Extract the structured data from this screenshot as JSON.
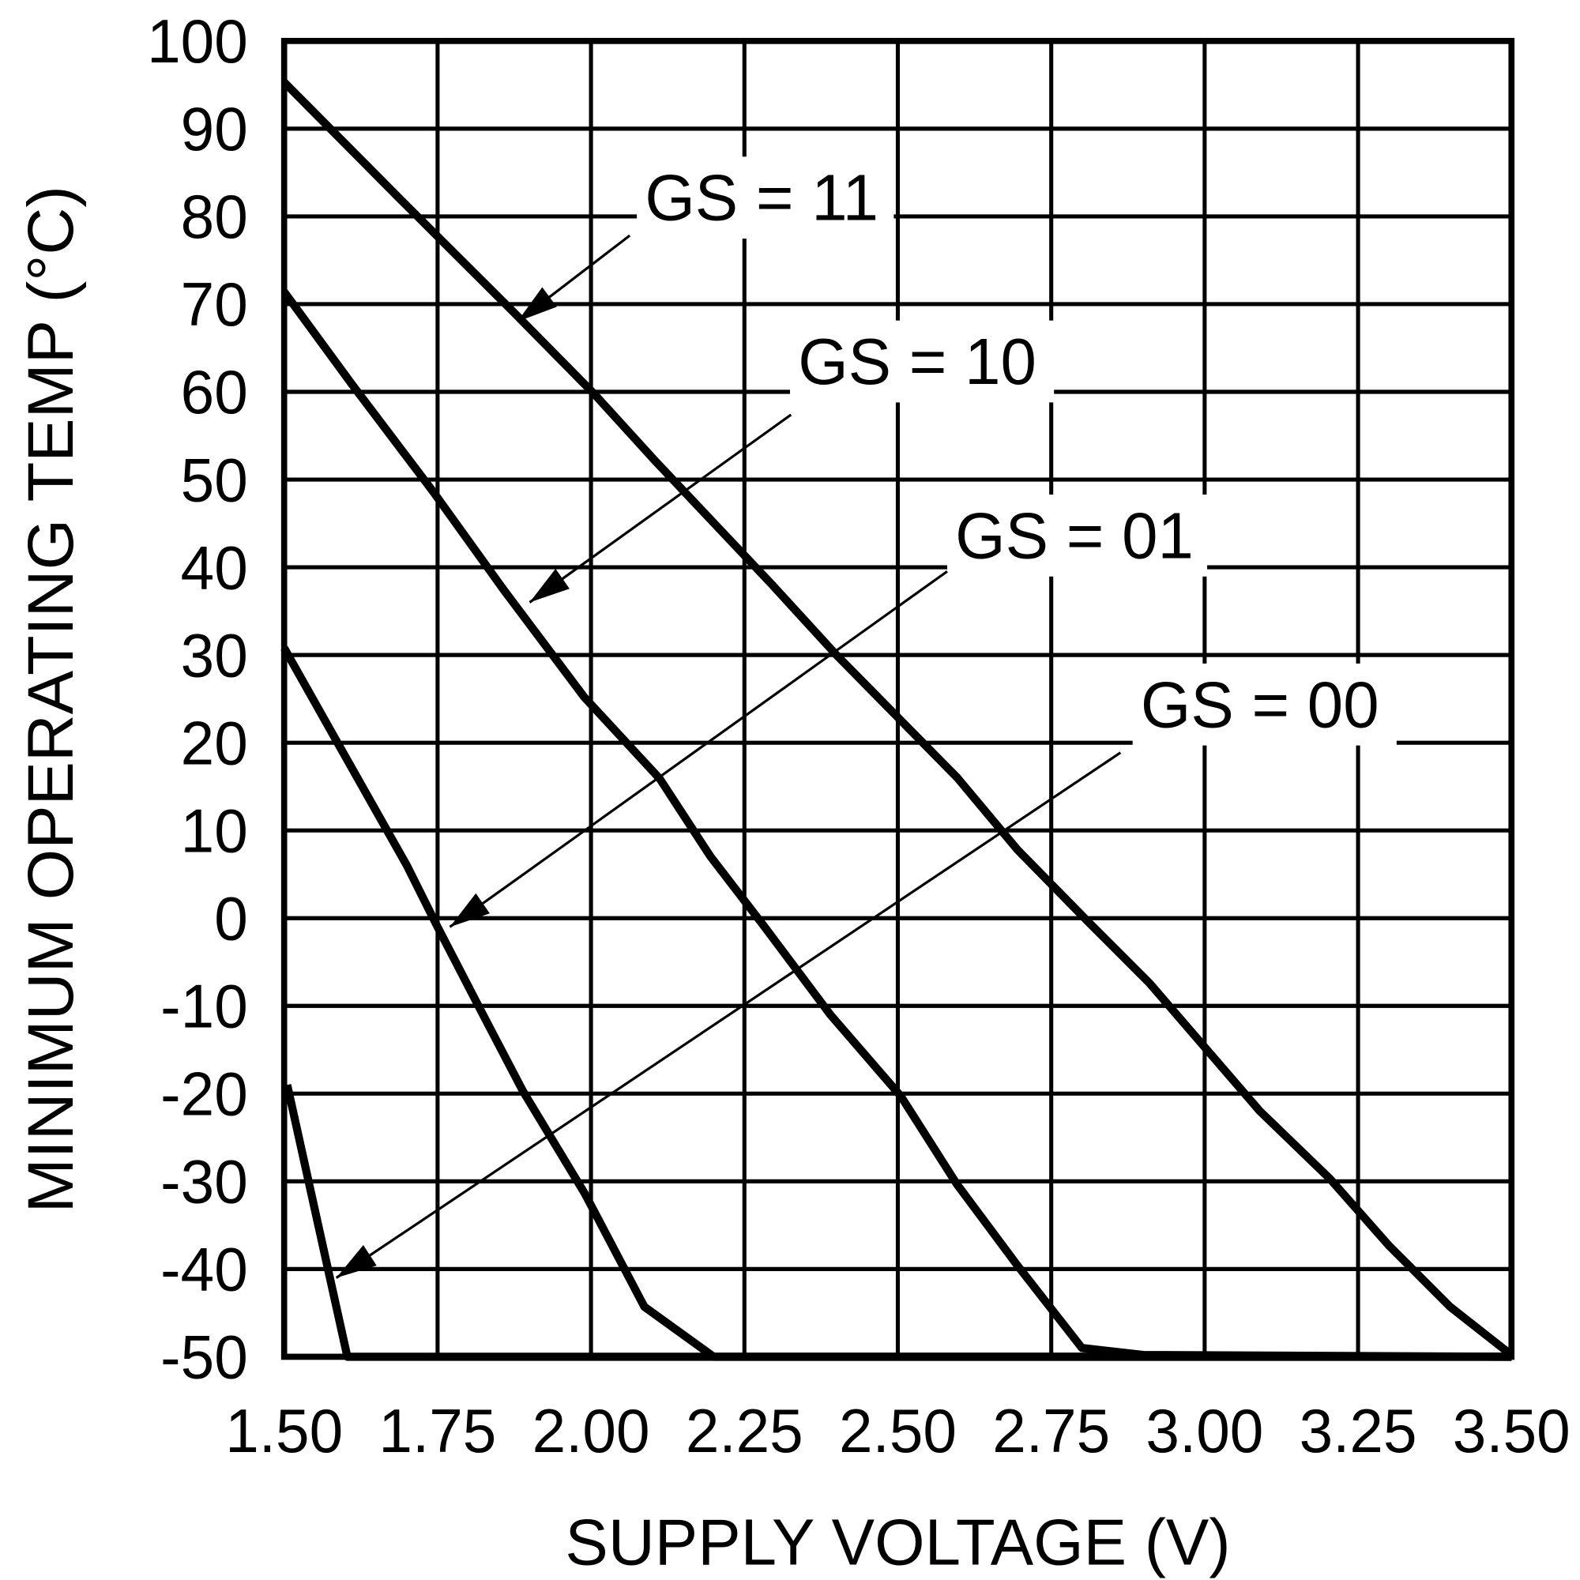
{
  "chart_data": {
    "type": "line",
    "title": "",
    "xlabel": "SUPPLY VOLTAGE (V)",
    "ylabel": "MINIMUM OPERATING TEMP (°C)",
    "xlim": [
      1.5,
      3.5
    ],
    "ylim": [
      -50,
      100
    ],
    "grid": true,
    "x_ticks": [
      "1.50",
      "1.75",
      "2.00",
      "2.25",
      "2.50",
      "2.75",
      "3.00",
      "3.25",
      "3.50"
    ],
    "y_ticks": [
      "100",
      "90",
      "80",
      "70",
      "60",
      "50",
      "40",
      "30",
      "20",
      "10",
      "0",
      "-10",
      "-20",
      "-30",
      "-40",
      "-50"
    ],
    "colors": {
      "line": "#000000",
      "background": "#ffffff"
    },
    "series": [
      {
        "name": "GS = 11",
        "label_anchor": [
          1.88,
          68
        ],
        "x": [
          1.5,
          1.69,
          1.875,
          2.006,
          2.105,
          2.294,
          2.4,
          2.597,
          2.695,
          2.81,
          2.91,
          3.09,
          3.204,
          3.3,
          3.4,
          3.5
        ],
        "y": [
          95.3,
          81.9,
          69,
          59.7,
          52.1,
          38.1,
          30,
          16,
          7.8,
          -0.4,
          -7.4,
          -22,
          -29.7,
          -37.3,
          -44.3,
          -49.8
        ]
      },
      {
        "name": "GS = 10",
        "label_anchor": [
          1.9,
          36
        ],
        "x": [
          1.5,
          1.61,
          1.743,
          1.857,
          1.989,
          2.112,
          2.194,
          2.284,
          2.39,
          2.505,
          2.596,
          2.695,
          2.8,
          2.9,
          3.5
        ],
        "y": [
          71.4,
          60.9,
          48.6,
          37.5,
          25.2,
          15.9,
          7.1,
          -1.1,
          -11,
          -20.3,
          -30.3,
          -39.6,
          -49,
          -49.8,
          -50
        ]
      },
      {
        "name": "GS = 01",
        "label_anchor": [
          1.77,
          -1
        ],
        "x": [
          1.5,
          1.587,
          1.7,
          1.75,
          1.824,
          1.889,
          1.99,
          2.087,
          2.2,
          3.5
        ],
        "y": [
          30.8,
          20,
          6,
          -1,
          -11,
          -19.7,
          -31.4,
          -44.3,
          -50,
          -50
        ]
      },
      {
        "name": "GS = 00",
        "label_anchor": [
          1.585,
          -41
        ],
        "x": [
          1.505,
          1.603,
          3.5
        ],
        "y": [
          -19,
          -50,
          -50
        ]
      }
    ]
  }
}
